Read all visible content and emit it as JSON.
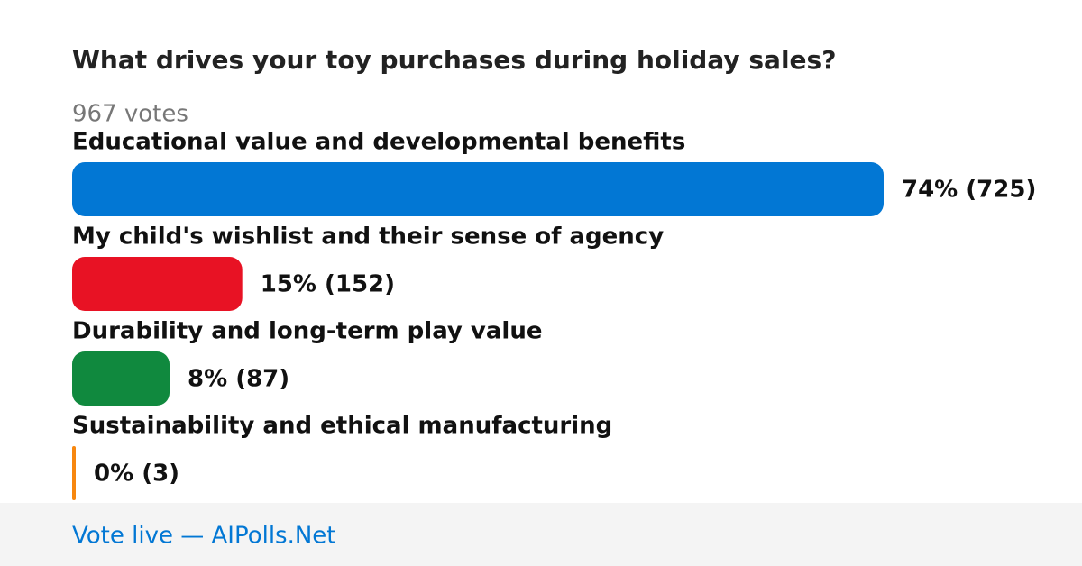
{
  "chart_data": {
    "type": "bar",
    "title": "What drives your toy purchases during holiday sales?",
    "subtitle": "967 votes",
    "categories": [
      "Educational value and developmental benefits",
      "My child's wishlist and their sense of agency",
      "Durability and long-term play value",
      "Sustainability and ethical manufacturing"
    ],
    "values": [
      725,
      152,
      87,
      3
    ],
    "value_labels": [
      "74% (725)",
      "15% (152)",
      "8% (87)",
      "0% (3)"
    ],
    "colors": [
      "#0277d4",
      "#e81224",
      "#10893e",
      "#f7870f"
    ],
    "footer": "Vote live — AIPolls.Net"
  }
}
